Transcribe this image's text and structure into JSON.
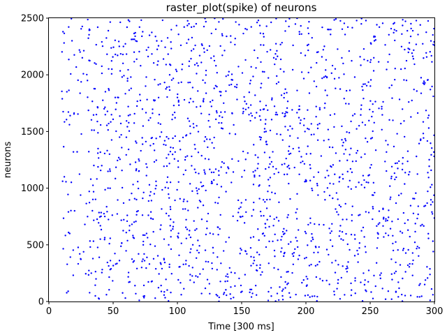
{
  "chart_data": {
    "type": "scatter",
    "title": "raster_plot(spike) of neurons",
    "xlabel": "Time [300 ms]",
    "ylabel": "neurons",
    "xlim": [
      0,
      300
    ],
    "ylim": [
      0,
      2500
    ],
    "xticks": [
      0,
      50,
      100,
      150,
      200,
      250,
      300
    ],
    "yticks": [
      0,
      500,
      1000,
      1500,
      2000,
      2500
    ],
    "grid": false,
    "marker_color": "#0000ff",
    "point_count": 1800,
    "x_range_of_points": [
      10,
      300
    ],
    "series": [
      {
        "name": "",
        "color": "#0000ff",
        "sample_points": [
          [
            12,
            1100
          ],
          [
            14,
            1850
          ],
          [
            15,
            90
          ],
          [
            16,
            1560
          ],
          [
            18,
            2300
          ],
          [
            20,
            800
          ],
          [
            22,
            1320
          ],
          [
            24,
            420
          ],
          [
            26,
            2150
          ],
          [
            28,
            680
          ],
          [
            30,
            1950
          ],
          [
            33,
            250
          ],
          [
            35,
            1200
          ],
          [
            38,
            2420
          ],
          [
            40,
            550
          ],
          [
            43,
            1700
          ],
          [
            46,
            1000
          ],
          [
            49,
            2050
          ],
          [
            52,
            330
          ],
          [
            55,
            1450
          ],
          [
            58,
            2250
          ],
          [
            61,
            760
          ],
          [
            64,
            1880
          ],
          [
            67,
            140
          ],
          [
            70,
            1150
          ],
          [
            73,
            2380
          ],
          [
            76,
            600
          ],
          [
            79,
            1620
          ],
          [
            82,
            950
          ],
          [
            85,
            2120
          ],
          [
            88,
            290
          ],
          [
            91,
            1380
          ],
          [
            94,
            2000
          ],
          [
            97,
            700
          ],
          [
            100,
            1800
          ],
          [
            103,
            60
          ],
          [
            106,
            1250
          ],
          [
            109,
            2450
          ],
          [
            112,
            500
          ],
          [
            115,
            1550
          ],
          [
            118,
            880
          ],
          [
            121,
            2200
          ],
          [
            124,
            350
          ],
          [
            127,
            1400
          ],
          [
            130,
            2080
          ],
          [
            133,
            640
          ],
          [
            136,
            1750
          ],
          [
            139,
            180
          ],
          [
            142,
            1050
          ],
          [
            145,
            2320
          ],
          [
            148,
            820
          ],
          [
            151,
            1660
          ],
          [
            154,
            420
          ],
          [
            157,
            1950
          ],
          [
            160,
            1100
          ],
          [
            163,
            2480
          ],
          [
            166,
            260
          ],
          [
            169,
            1500
          ],
          [
            172,
            900
          ],
          [
            175,
            2150
          ],
          [
            178,
            540
          ],
          [
            181,
            1820
          ],
          [
            184,
            120
          ],
          [
            187,
            1300
          ],
          [
            190,
            2260
          ],
          [
            193,
            730
          ],
          [
            196,
            1600
          ],
          [
            199,
            380
          ],
          [
            202,
            2020
          ],
          [
            205,
            980
          ],
          [
            208,
            1720
          ],
          [
            211,
            200
          ],
          [
            214,
            1420
          ],
          [
            217,
            2400
          ],
          [
            220,
            620
          ],
          [
            223,
            1880
          ],
          [
            226,
            850
          ],
          [
            229,
            2100
          ],
          [
            232,
            310
          ],
          [
            235,
            1350
          ],
          [
            238,
            1980
          ],
          [
            241,
            760
          ],
          [
            244,
            1580
          ],
          [
            247,
            90
          ],
          [
            250,
            1180
          ],
          [
            253,
            2340
          ],
          [
            256,
            560
          ],
          [
            259,
            1700
          ],
          [
            262,
            20
          ],
          [
            265,
            2180
          ],
          [
            268,
            450
          ],
          [
            271,
            1480
          ],
          [
            274,
            2050
          ],
          [
            277,
            690
          ],
          [
            280,
            1760
          ],
          [
            283,
            230
          ],
          [
            286,
            1280
          ],
          [
            289,
            2440
          ],
          [
            292,
            840
          ],
          [
            295,
            1620
          ],
          [
            298,
            1030
          ],
          [
            300,
            2260
          ]
        ]
      }
    ]
  }
}
